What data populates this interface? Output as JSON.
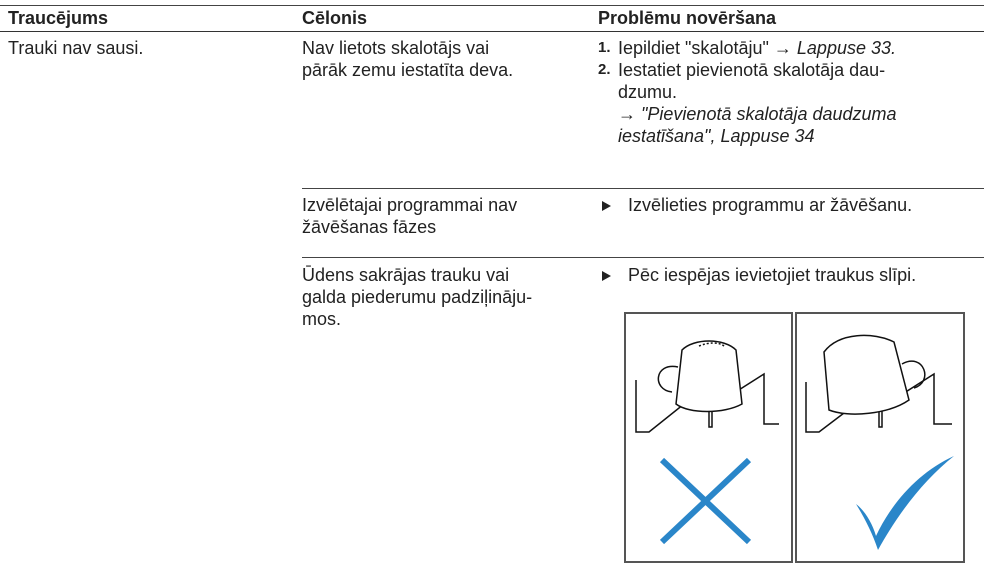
{
  "table": {
    "headers": [
      "Traucējums",
      "Cēlonis",
      "Problēmu novēršana"
    ],
    "fault": "Trauki nav sausi.",
    "causes": [
      {
        "cause": [
          "Nav lietots skalotājs vai",
          "pārāk zemu iestatīta deva."
        ],
        "steps": [
          {
            "number": "1.",
            "text": "Iepildiet \"skalotāju\"",
            "arrow": "→",
            "link": "Lappuse 33."
          },
          {
            "number": "2.",
            "lines": [
              "Iestatiet pievienotā skalotāja dau-",
              "dzumu."
            ],
            "arrow": "→",
            "link": [
              "\"Pievienotā skalotāja daudzuma",
              "iestatīšana\", Lappuse 34"
            ]
          }
        ]
      },
      {
        "cause": [
          "Izvēlētajai programmai nav",
          "žāvēšanas fāzes"
        ],
        "remedy": "Izvēlieties programmu ar žāvēšanu."
      },
      {
        "cause": [
          "Ūdens sakrājas trauku vai",
          "galda piederumu padziļināju-",
          "mos."
        ],
        "remedy": "Pēc iespējas ievietojiet traukus slīpi."
      }
    ]
  }
}
